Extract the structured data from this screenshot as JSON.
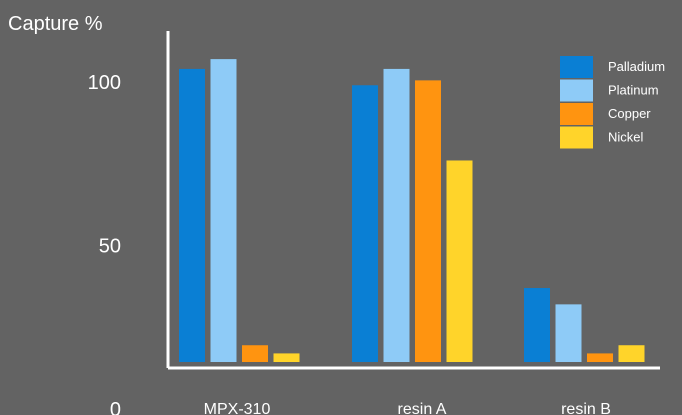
{
  "chart_data": {
    "type": "bar",
    "ylabel": "Capture %",
    "y_ticks": [
      "100",
      "50",
      "0"
    ],
    "y_tick_values": [
      100,
      50,
      0
    ],
    "categories": [
      "MPX-310",
      "resin A",
      "resin B"
    ],
    "series": [
      {
        "name": "Palladium",
        "color": "#0a7fd4",
        "values": [
          104,
          99,
          37
        ]
      },
      {
        "name": "Platinum",
        "color": "#8ecbf7",
        "values": [
          107,
          104,
          32
        ]
      },
      {
        "name": "Copper",
        "color": "#ff9410",
        "values": [
          19.5,
          100.5,
          17
        ]
      },
      {
        "name": "Nickel",
        "color": "#ffd42a",
        "values": [
          17,
          76,
          19.5
        ]
      }
    ],
    "legend_position": "top-right",
    "grid": false
  }
}
